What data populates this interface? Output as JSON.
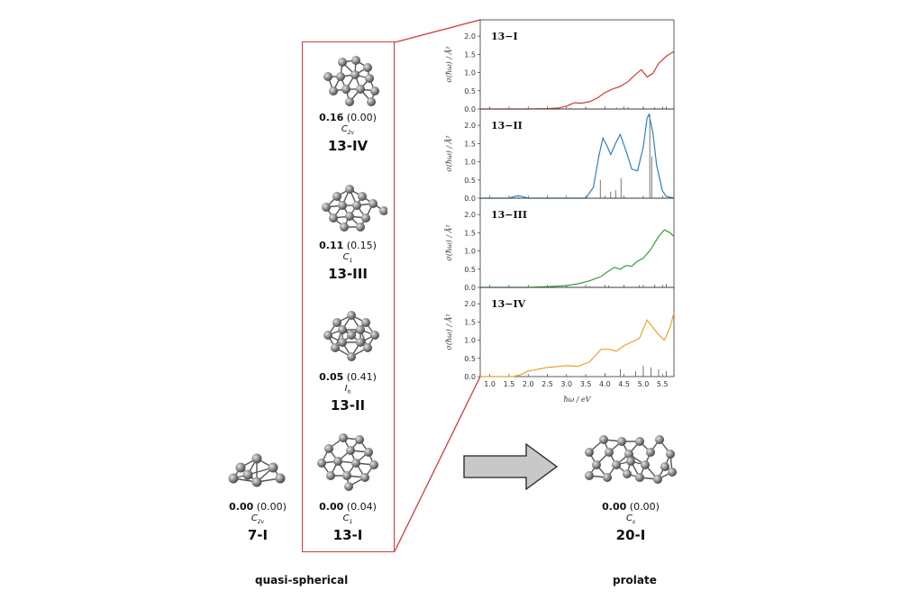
{
  "clusters": [
    {
      "id": "7-I",
      "energy_bold": "0.00",
      "energy_paren": "(0.00)",
      "symmetry": "C",
      "symmetry_sub": "2v",
      "name": "7-I"
    },
    {
      "id": "13-IV",
      "energy_bold": "0.16",
      "energy_paren": "(0.00)",
      "symmetry": "C",
      "symmetry_sub": "2v",
      "name": "13-IV"
    },
    {
      "id": "13-III",
      "energy_bold": "0.11",
      "energy_paren": "(0.15)",
      "symmetry": "C",
      "symmetry_sub": "1",
      "name": "13-III"
    },
    {
      "id": "13-II",
      "energy_bold": "0.05",
      "energy_paren": "(0.41)",
      "symmetry": "I",
      "symmetry_sub": "h",
      "name": "13-II"
    },
    {
      "id": "13-I",
      "energy_bold": "0.00",
      "energy_paren": "(0.04)",
      "symmetry": "C",
      "symmetry_sub": "1",
      "name": "13-I"
    },
    {
      "id": "20-I",
      "energy_bold": "0.00",
      "energy_paren": "(0.00)",
      "symmetry": "C",
      "symmetry_sub": "s",
      "name": "20-I"
    }
  ],
  "captions": {
    "left": "quasi-spherical",
    "right": "prolate"
  },
  "colors": {
    "box": "#d03a3a",
    "arrow_fill": "#c8c8c8",
    "atom": "#8a8a8a"
  },
  "chart_data": {
    "type": "line",
    "xlabel": "ħω / eV",
    "ylabel": "σ(ħω) / Å²",
    "xlim": [
      0.75,
      5.8
    ],
    "ylim": [
      0,
      2.3
    ],
    "x_ticks": [
      "1.0",
      "1.5",
      "2.0",
      "2.5",
      "3.0",
      "3.5",
      "4.0",
      "4.5",
      "5.0",
      "5.5"
    ],
    "y_ticks": [
      "0.0",
      "0.5",
      "1.0",
      "1.5",
      "2.0"
    ],
    "panels": [
      {
        "label": "13−I",
        "color": "#d13b2f",
        "x": [
          0.75,
          2.0,
          2.5,
          2.8,
          3.0,
          3.2,
          3.4,
          3.6,
          3.8,
          4.0,
          4.2,
          4.4,
          4.6,
          4.8,
          4.95,
          5.1,
          5.25,
          5.4,
          5.6,
          5.8
        ],
        "y": [
          0,
          0,
          0.01,
          0.03,
          0.08,
          0.17,
          0.16,
          0.2,
          0.3,
          0.45,
          0.55,
          0.62,
          0.75,
          0.95,
          1.08,
          0.88,
          0.98,
          1.25,
          1.45,
          1.58
        ],
        "sticks": [
          [
            3.1,
            0.03
          ],
          [
            4.3,
            0.04
          ],
          [
            4.6,
            0.05
          ],
          [
            5.0,
            0.06
          ],
          [
            5.3,
            0.05
          ],
          [
            5.6,
            0.07
          ]
        ]
      },
      {
        "label": "13−II",
        "color": "#2f7fbf",
        "x": [
          0.75,
          1.5,
          1.65,
          1.75,
          1.9,
          2.0,
          3.5,
          3.7,
          3.85,
          3.95,
          4.05,
          4.15,
          4.3,
          4.4,
          4.55,
          4.7,
          4.85,
          5.0,
          5.1,
          5.15,
          5.25,
          5.35,
          5.5,
          5.6,
          5.8
        ],
        "y": [
          0,
          0,
          0.05,
          0.07,
          0.03,
          0,
          0,
          0.3,
          1.2,
          1.65,
          1.45,
          1.2,
          1.55,
          1.75,
          1.3,
          0.8,
          0.75,
          1.4,
          2.2,
          2.3,
          1.8,
          0.9,
          0.2,
          0.05,
          0
        ],
        "sticks": [
          [
            1.75,
            0.04
          ],
          [
            3.88,
            0.5
          ],
          [
            4.15,
            0.18
          ],
          [
            4.28,
            0.22
          ],
          [
            4.42,
            0.55
          ],
          [
            5.17,
            2.3
          ],
          [
            5.22,
            1.15
          ]
        ]
      },
      {
        "label": "13−III",
        "color": "#3a9a3a",
        "x": [
          0.75,
          2.0,
          2.5,
          3.0,
          3.3,
          3.6,
          3.9,
          4.1,
          4.25,
          4.4,
          4.55,
          4.7,
          4.85,
          5.0,
          5.2,
          5.4,
          5.55,
          5.7,
          5.8
        ],
        "y": [
          0,
          0,
          0.02,
          0.05,
          0.1,
          0.18,
          0.3,
          0.45,
          0.55,
          0.5,
          0.6,
          0.58,
          0.72,
          0.8,
          1.05,
          1.4,
          1.58,
          1.5,
          1.4
        ],
        "sticks": [
          [
            3.6,
            0.03
          ],
          [
            4.1,
            0.05
          ],
          [
            4.5,
            0.05
          ],
          [
            4.9,
            0.06
          ],
          [
            5.3,
            0.08
          ],
          [
            5.6,
            0.1
          ]
        ]
      },
      {
        "label": "13−IV",
        "color": "#e3a62f",
        "x": [
          0.75,
          1.6,
          1.8,
          2.0,
          2.5,
          3.0,
          3.3,
          3.6,
          3.9,
          4.1,
          4.3,
          4.5,
          4.7,
          4.9,
          5.1,
          5.25,
          5.4,
          5.55,
          5.7,
          5.8
        ],
        "y": [
          0,
          0,
          0.05,
          0.15,
          0.25,
          0.3,
          0.28,
          0.4,
          0.75,
          0.75,
          0.7,
          0.85,
          0.95,
          1.05,
          1.55,
          1.35,
          1.15,
          1.0,
          1.35,
          1.75
        ],
        "sticks": [
          [
            4.0,
            0.1
          ],
          [
            4.4,
            0.2
          ],
          [
            4.8,
            0.15
          ],
          [
            5.0,
            0.3
          ],
          [
            5.2,
            0.25
          ],
          [
            5.4,
            0.2
          ],
          [
            5.6,
            0.15
          ]
        ]
      }
    ]
  }
}
